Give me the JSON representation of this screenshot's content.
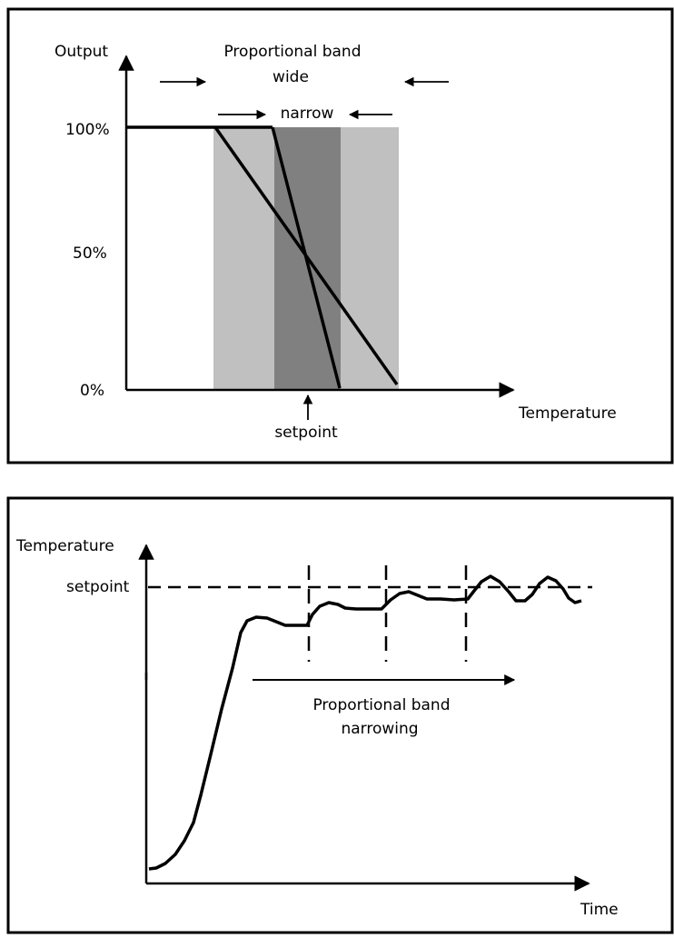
{
  "colors": {
    "wide_band": "#c0c0c0",
    "narrow_band": "#808080",
    "line": "#000000",
    "background": "#ffffff"
  },
  "panel_top": {
    "y_axis_label": "Output",
    "y_ticks": [
      "100%",
      "50%",
      "0%"
    ],
    "x_axis_label": "Temperature",
    "band_title_line1": "Proportional band",
    "band_title_line2": "wide",
    "narrow_label": "narrow",
    "setpoint_label": "setpoint"
  },
  "panel_bottom": {
    "y_axis_label": "Temperature",
    "setpoint_label": "setpoint",
    "x_axis_label": "Time",
    "narrowing_line1": "Proportional band",
    "narrowing_line2": "narrowing"
  }
}
